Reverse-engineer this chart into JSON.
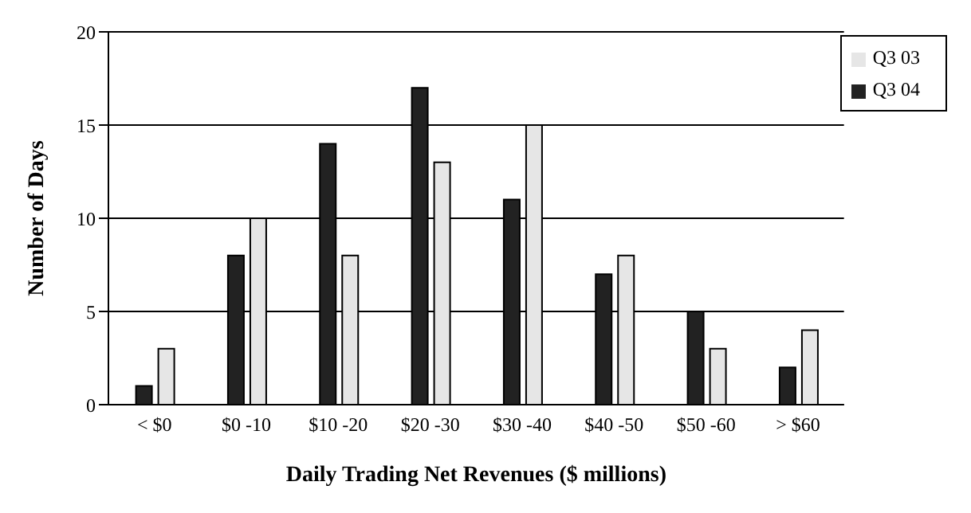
{
  "chart_data": {
    "type": "bar",
    "xlabel": "Daily Trading Net Revenues ($ millions)",
    "ylabel": "Number of Days",
    "categories": [
      "< $0",
      "$0 -10",
      "$10 -20",
      "$20 -30",
      "$30 -40",
      "$40 -50",
      "$50 -60",
      "> $60"
    ],
    "series": [
      {
        "name": "Q3 04",
        "color": "#222222",
        "values": [
          1,
          8,
          14,
          17,
          11,
          7,
          5,
          2
        ]
      },
      {
        "name": "Q3 03",
        "color": "#e6e6e6",
        "values": [
          3,
          10,
          8,
          13,
          15,
          8,
          3,
          4
        ]
      }
    ],
    "ylim": [
      0,
      20
    ],
    "yticks": [
      0,
      5,
      10,
      15,
      20
    ],
    "grid": "y",
    "legend": "top right"
  }
}
